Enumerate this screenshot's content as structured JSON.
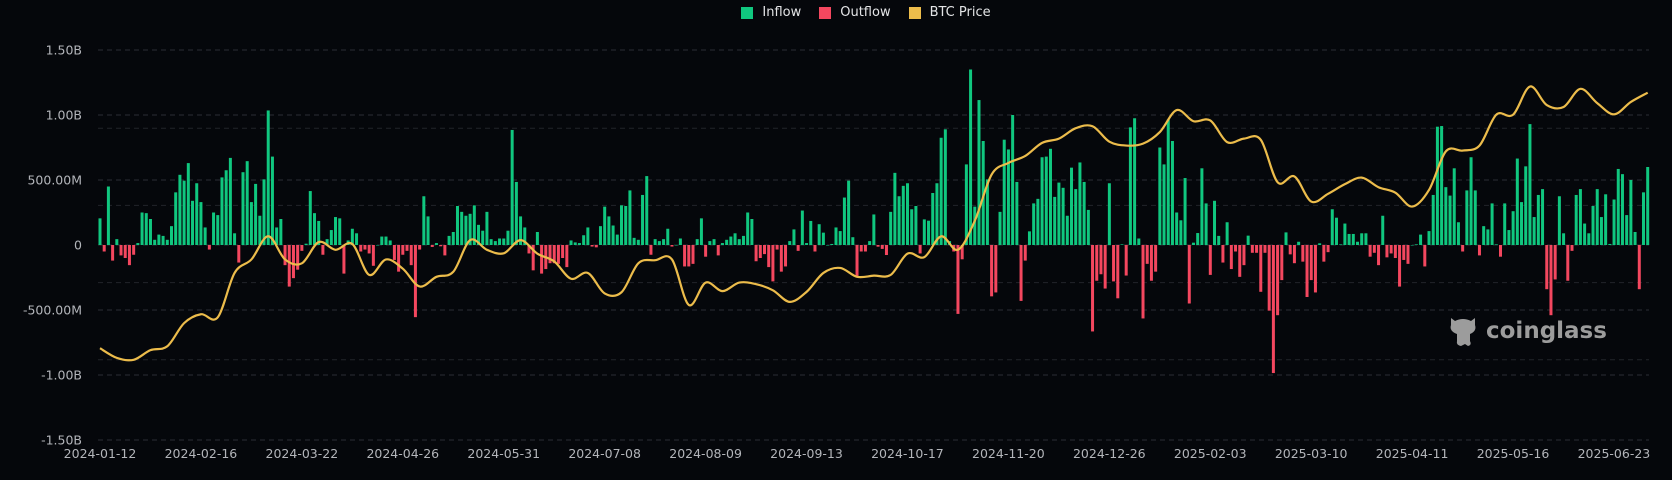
{
  "legend": [
    {
      "label": "Inflow",
      "color": "#10c77f"
    },
    {
      "label": "Outflow",
      "color": "#f4475f"
    },
    {
      "label": "BTC Price",
      "color": "#ecbc4b"
    }
  ],
  "watermark": {
    "text": "coinglass",
    "icon": "coinglass-logo-icon"
  },
  "chart_data": {
    "type": "bar+line",
    "title": "",
    "xlabel": "",
    "ylabel": "",
    "grid": true,
    "legend_position": "top-center",
    "x_tick_labels": [
      "2024-01-12",
      "2024-02-16",
      "2024-03-22",
      "2024-04-26",
      "2024-05-31",
      "2024-07-08",
      "2024-08-09",
      "2024-09-13",
      "2024-10-17",
      "2024-11-20",
      "2024-12-26",
      "2025-02-03",
      "2025-03-10",
      "2025-04-11",
      "2025-05-16",
      "2025-06-23"
    ],
    "y_tick_labels": [
      "1.50B",
      "1.00B",
      "500.00M",
      "0",
      "-500.00M",
      "-1.00B",
      "-1.50B"
    ],
    "y_ticks": [
      1500000000,
      1000000000,
      500000000,
      0,
      -500000000,
      -1000000000,
      -1500000000
    ],
    "ylim": [
      -1500000000,
      1500000000
    ],
    "price_axis_range": [
      20000,
      120000
    ],
    "price_axis_hidden": true,
    "flow_unit": "USD millions (daily net; positive = Inflow, negative = Outflow)",
    "flows": [
      205,
      -50,
      450,
      -120,
      45,
      -80,
      -100,
      -155,
      -75,
      15,
      250,
      245,
      200,
      40,
      80,
      70,
      40,
      145,
      405,
      540,
      495,
      630,
      340,
      475,
      330,
      135,
      -35,
      250,
      230,
      520,
      575,
      670,
      90,
      -135,
      560,
      645,
      330,
      470,
      225,
      505,
      1035,
      680,
      135,
      200,
      -155,
      -320,
      -255,
      -190,
      -45,
      10,
      415,
      245,
      185,
      -75,
      45,
      115,
      215,
      205,
      -220,
      35,
      125,
      90,
      -50,
      -35,
      -65,
      -160,
      0,
      65,
      65,
      35,
      -115,
      -205,
      -75,
      -45,
      -155,
      -555,
      -35,
      375,
      220,
      -15,
      15,
      -10,
      -80,
      70,
      100,
      300,
      255,
      225,
      240,
      305,
      155,
      110,
      255,
      45,
      30,
      50,
      50,
      110,
      885,
      485,
      220,
      135,
      -65,
      -195,
      100,
      -220,
      -185,
      -140,
      -140,
      -145,
      -100,
      -170,
      35,
      20,
      15,
      75,
      135,
      -12,
      -18,
      145,
      295,
      220,
      150,
      80,
      305,
      300,
      420,
      55,
      40,
      385,
      530,
      -75,
      45,
      30,
      45,
      125,
      -12,
      0,
      50,
      -165,
      -165,
      -145,
      45,
      205,
      -90,
      30,
      45,
      -80,
      15,
      40,
      65,
      90,
      45,
      70,
      250,
      200,
      -125,
      -100,
      -70,
      -170,
      -280,
      -35,
      -205,
      -165,
      30,
      120,
      -45,
      265,
      15,
      185,
      -50,
      160,
      95,
      0,
      8,
      135,
      107,
      365,
      495,
      60,
      -240,
      -50,
      -50,
      30,
      235,
      -13,
      -30,
      -77,
      255,
      555,
      375,
      455,
      475,
      275,
      300,
      -65,
      197,
      187,
      400,
      475,
      825,
      890,
      30,
      -50,
      -530,
      -110,
      620,
      1350,
      295,
      1115,
      800,
      505,
      -395,
      -365,
      255,
      810,
      735,
      1000,
      485,
      -430,
      -120,
      105,
      320,
      355,
      675,
      680,
      740,
      370,
      480,
      440,
      225,
      595,
      430,
      635,
      485,
      270,
      -665,
      -275,
      -225,
      -335,
      475,
      -280,
      -410,
      5,
      -235,
      905,
      975,
      50,
      -565,
      -145,
      -275,
      -205,
      750,
      620,
      965,
      800,
      250,
      190,
      515,
      -450,
      18,
      92,
      590,
      320,
      -230,
      340,
      70,
      -135,
      175,
      -185,
      -50,
      -245,
      -155,
      72,
      -60,
      -60,
      -360,
      -60,
      -505,
      -985,
      -540,
      -270,
      97,
      -72,
      -140,
      25,
      -128,
      -400,
      -270,
      -365,
      13,
      -128,
      -55,
      275,
      210,
      5,
      165,
      85,
      85,
      25,
      90,
      90,
      -90,
      -60,
      -155,
      225,
      -95,
      -65,
      -100,
      -320,
      -115,
      -145,
      0,
      5,
      80,
      -165,
      107,
      385,
      910,
      915,
      445,
      380,
      590,
      175,
      -50,
      420,
      675,
      420,
      -80,
      145,
      120,
      320,
      5,
      -90,
      320,
      115,
      260,
      665,
      330,
      605,
      930,
      215,
      385,
      430,
      -340,
      -540,
      -265,
      375,
      90,
      -275,
      -45,
      385,
      430,
      165,
      90,
      300,
      430,
      215,
      390,
      8,
      350,
      585,
      545,
      230,
      500,
      100,
      -340,
      405,
      600
    ],
    "btc_price_usd_every_4th_day": [
      43000,
      40500,
      40000,
      42500,
      43500,
      49500,
      51800,
      51000,
      62500,
      66000,
      72000,
      66000,
      65000,
      70500,
      68500,
      70000,
      62000,
      66000,
      63600,
      59000,
      61500,
      62800,
      71000,
      68500,
      67600,
      71000,
      67500,
      65500,
      61000,
      62500,
      57200,
      57500,
      65000,
      65800,
      66000,
      54200,
      60000,
      57800,
      60000,
      59600,
      58000,
      55000,
      57600,
      62500,
      63800,
      61500,
      61800,
      62000,
      67500,
      66600,
      72000,
      68500,
      76000,
      88000,
      91000,
      92800,
      96200,
      97300,
      100000,
      100500,
      96500,
      95500,
      96000,
      99000,
      104700,
      101800,
      102000,
      96400,
      97300,
      97000,
      86000,
      87500,
      81000,
      83000,
      85500,
      87200,
      84700,
      83300,
      79700,
      84000,
      94000,
      94200,
      95500,
      103500,
      103500,
      110800,
      106000,
      105500,
      110200,
      106500,
      103600,
      106800,
      109200
    ]
  }
}
